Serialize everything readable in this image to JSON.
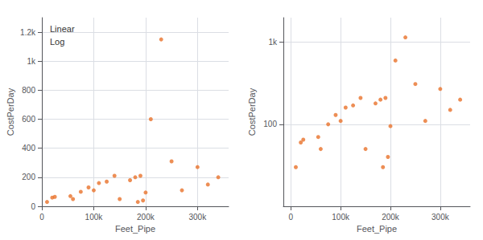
{
  "chart_data": [
    {
      "type": "scatter",
      "x": [
        10000,
        20000,
        25000,
        55000,
        60000,
        75000,
        90000,
        100000,
        110000,
        125000,
        140000,
        150000,
        170000,
        180000,
        185000,
        190000,
        195000,
        200000,
        210000,
        230000,
        250000,
        270000,
        300000,
        320000,
        340000
      ],
      "values": [
        30,
        60,
        65,
        70,
        50,
        100,
        130,
        110,
        160,
        170,
        210,
        50,
        180,
        200,
        30,
        210,
        40,
        95,
        600,
        1150,
        310,
        110,
        270,
        150,
        200
      ],
      "color": "#E8722A",
      "x_label": "Feet_Pipe",
      "y_label": "CostPerDay",
      "xlim": [
        0,
        360000
      ],
      "xticks": [
        0,
        {
          "value": 100000,
          "label": "100k"
        },
        {
          "value": 200000,
          "label": "200k"
        },
        {
          "value": 300000,
          "label": "300k"
        }
      ],
      "ylim": [
        0,
        1300
      ],
      "yticks": [
        0,
        200,
        400,
        600,
        800,
        {
          "value": 1000,
          "label": "1k"
        },
        {
          "value": 1200,
          "label": "1.2k"
        }
      ],
      "grid": true,
      "annotations": [
        "Linear",
        "Log"
      ]
    },
    {
      "type": "scatter",
      "x": [
        10000,
        20000,
        25000,
        55000,
        60000,
        75000,
        90000,
        100000,
        110000,
        125000,
        140000,
        150000,
        170000,
        180000,
        185000,
        190000,
        195000,
        200000,
        210000,
        230000,
        250000,
        270000,
        300000,
        320000,
        340000
      ],
      "values": [
        30,
        60,
        65,
        70,
        50,
        100,
        130,
        110,
        160,
        170,
        210,
        50,
        180,
        200,
        30,
        210,
        40,
        95,
        600,
        1150,
        310,
        110,
        270,
        150,
        200
      ],
      "color": "#E8722A",
      "x_label": "Feet_Pipe",
      "y_label": "CostPerDay",
      "xlim": [
        -15000,
        360000
      ],
      "xticks": [
        0,
        {
          "value": 100000,
          "label": "100k"
        },
        {
          "value": 200000,
          "label": "200k"
        },
        {
          "value": 300000,
          "label": "300k"
        }
      ],
      "ylim": [
        10,
        2000
      ],
      "yticks": [
        100,
        {
          "value": 1000,
          "label": "1k"
        }
      ],
      "log": "y",
      "grid": true
    }
  ]
}
